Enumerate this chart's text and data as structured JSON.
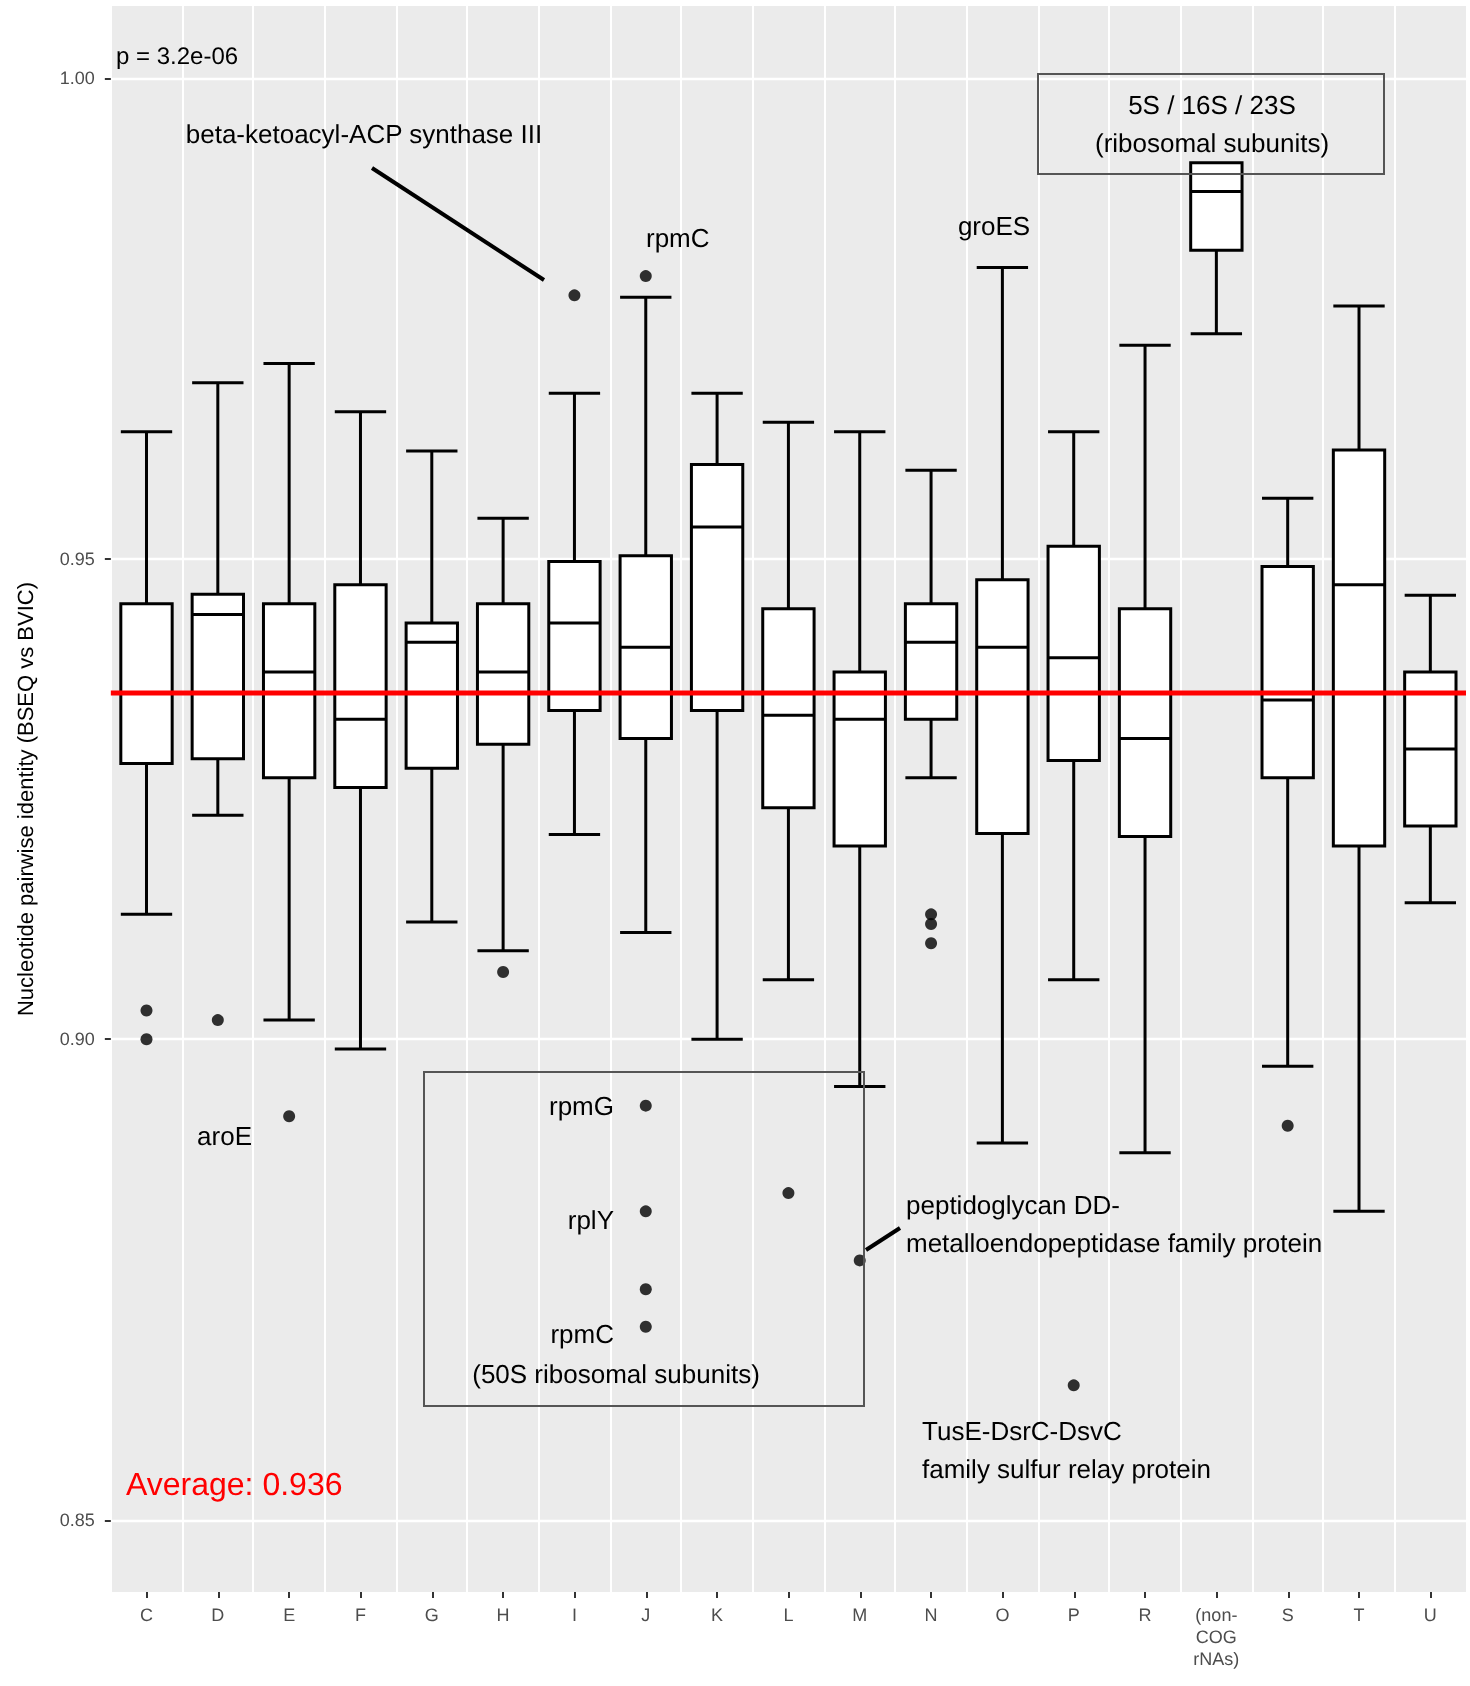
{
  "chart_data": {
    "type": "box",
    "ylabel": "Nucleotide pairwise identity (BSEQ vs BVIC)",
    "categories": [
      "C",
      "D",
      "E",
      "F",
      "G",
      "H",
      "I",
      "J",
      "K",
      "L",
      "M",
      "N",
      "O",
      "P",
      "R",
      "(non-\nCOG\nrNAs)",
      "S",
      "T",
      "U"
    ],
    "boxes": [
      {
        "low": 0.913,
        "q1": 0.9287,
        "median": 0.936,
        "q3": 0.9453,
        "high": 0.9632,
        "outliers": [
          0.903,
          0.9
        ]
      },
      {
        "low": 0.9233,
        "q1": 0.9292,
        "median": 0.9442,
        "q3": 0.9463,
        "high": 0.9683,
        "outliers": [
          0.902
        ]
      },
      {
        "low": 0.902,
        "q1": 0.9272,
        "median": 0.9382,
        "q3": 0.9453,
        "high": 0.9703,
        "outliers": [
          0.892
        ]
      },
      {
        "low": 0.899,
        "q1": 0.9262,
        "median": 0.9333,
        "q3": 0.9473,
        "high": 0.9653
      },
      {
        "low": 0.9122,
        "q1": 0.9282,
        "median": 0.9413,
        "q3": 0.9433,
        "high": 0.9612
      },
      {
        "low": 0.9092,
        "q1": 0.9307,
        "median": 0.9382,
        "q3": 0.9453,
        "high": 0.9542,
        "outliers": [
          0.907
        ]
      },
      {
        "low": 0.9213,
        "q1": 0.9342,
        "median": 0.9433,
        "q3": 0.9497,
        "high": 0.9672,
        "outliers": [
          0.9774
        ]
      },
      {
        "low": 0.9111,
        "q1": 0.9313,
        "median": 0.9408,
        "q3": 0.9503,
        "high": 0.9772,
        "outliers": [
          0.9794,
          0.8931,
          0.8821,
          0.874,
          0.8701
        ]
      },
      {
        "low": 0.9,
        "q1": 0.9342,
        "median": 0.9533,
        "q3": 0.9598,
        "high": 0.9672
      },
      {
        "low": 0.9062,
        "q1": 0.9241,
        "median": 0.9337,
        "q3": 0.9448,
        "high": 0.9642,
        "outliers": [
          0.884
        ]
      },
      {
        "low": 0.8951,
        "q1": 0.9201,
        "median": 0.9333,
        "q3": 0.9382,
        "high": 0.9632,
        "outliers": [
          0.877
        ]
      },
      {
        "low": 0.9272,
        "q1": 0.9333,
        "median": 0.9413,
        "q3": 0.9453,
        "high": 0.9592,
        "outliers": [
          0.913,
          0.912,
          0.91
        ]
      },
      {
        "low": 0.8892,
        "q1": 0.9214,
        "median": 0.9408,
        "q3": 0.9478,
        "high": 0.9803
      },
      {
        "low": 0.9062,
        "q1": 0.929,
        "median": 0.9397,
        "q3": 0.9513,
        "high": 0.9632,
        "outliers": [
          0.864
        ]
      },
      {
        "low": 0.8882,
        "q1": 0.9211,
        "median": 0.9313,
        "q3": 0.9448,
        "high": 0.9722
      },
      {
        "low": 0.9734,
        "q1": 0.9821,
        "median": 0.9882,
        "q3": 0.9912,
        "high": 0.9912
      },
      {
        "low": 0.8972,
        "q1": 0.9272,
        "median": 0.9353,
        "q3": 0.9492,
        "high": 0.9563,
        "outliers": [
          0.891
        ]
      },
      {
        "low": 0.8821,
        "q1": 0.9201,
        "median": 0.9473,
        "q3": 0.9613,
        "high": 0.9763
      },
      {
        "low": 0.9142,
        "q1": 0.9222,
        "median": 0.9302,
        "q3": 0.9382,
        "high": 0.9462
      }
    ],
    "ylim": [
      0.8425,
      1.0075
    ],
    "yticks": [
      0.85,
      {
        "value": 0.9,
        "label": "0.90"
      },
      0.95,
      {
        "value": 1.0,
        "label": "1.00"
      }
    ],
    "grid": true,
    "ref_lines": [
      {
        "axis": "y",
        "value": 0.936,
        "label": "Average: 0.936",
        "color": "#ff0000"
      }
    ],
    "annotations": [
      "p = 3.2e-06",
      "beta-ketoacyl-ACP synthase III",
      "rpmC",
      "groES",
      "5S / 16S / 23S\n(ribosomal subunits)",
      "aroE",
      "rpmG",
      "rplY",
      "rpmC",
      "(50S ribosomal subunits)",
      "peptidoglycan DD-\nmetalloendopeptidase family protein",
      "TusE-DsrC-DsvC\nfamily sulfur relay protein"
    ]
  }
}
